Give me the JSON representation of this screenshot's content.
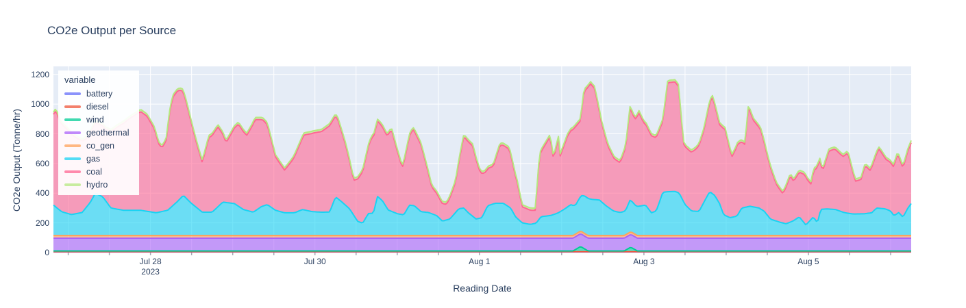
{
  "title": "CO2e Output per Source",
  "x_axis": {
    "title": "Reading Date",
    "time_unit": "days since 2023-07-26 00:00",
    "range_days": [
      0.82,
      11.25
    ],
    "minor_tick_step": 0.5,
    "ticks": [
      {
        "t": 2,
        "label": "Jul 28",
        "sublabel": "2023"
      },
      {
        "t": 4,
        "label": "Jul 30"
      },
      {
        "t": 6,
        "label": "Aug 1"
      },
      {
        "t": 8,
        "label": "Aug 3"
      },
      {
        "t": 10,
        "label": "Aug 5"
      }
    ]
  },
  "y_axis": {
    "title": "CO2e Output (Tonne/hr)",
    "ticks": [
      0,
      200,
      400,
      600,
      800,
      1000,
      1200
    ],
    "range": [
      0,
      1245
    ]
  },
  "legend": {
    "title": "variable"
  },
  "colors": {
    "plot_bg": "#E5ECF6",
    "grid": "#FFFFFF",
    "text": "#2a3f5f",
    "tick_mark": "#a2a9b4",
    "fill_opacity": 0.6
  },
  "chart_data": {
    "type": "area",
    "stacked": true,
    "time_unit": "days since 2023-07-26 00:00",
    "series": [
      {
        "name": "battery",
        "color": "#636EFA",
        "points": [
          [
            0.82,
            4
          ],
          [
            11.25,
            4
          ]
        ]
      },
      {
        "name": "diesel",
        "color": "#EF553B",
        "points": [
          [
            0.82,
            2
          ],
          [
            11.25,
            2
          ]
        ]
      },
      {
        "name": "wind",
        "color": "#00CC96",
        "points": [
          [
            0.82,
            5
          ],
          [
            7.14,
            5
          ],
          [
            7.23,
            35
          ],
          [
            7.32,
            5
          ],
          [
            7.76,
            5
          ],
          [
            7.84,
            30
          ],
          [
            7.92,
            5
          ],
          [
            11.25,
            5
          ]
        ]
      },
      {
        "name": "geothermal",
        "color": "#AB63FA",
        "points": [
          [
            0.82,
            86
          ],
          [
            11.25,
            86
          ]
        ]
      },
      {
        "name": "co_gen",
        "color": "#FFA15A",
        "points": [
          [
            0.82,
            18
          ],
          [
            11.25,
            18
          ]
        ]
      },
      {
        "name": "gas",
        "color": "#19D3F3",
        "points": [
          [
            0.82,
            205
          ],
          [
            0.92,
            160
          ],
          [
            1.04,
            141
          ],
          [
            1.17,
            155
          ],
          [
            1.27,
            225
          ],
          [
            1.33,
            285
          ],
          [
            1.42,
            260
          ],
          [
            1.52,
            185
          ],
          [
            1.67,
            170
          ],
          [
            1.88,
            170
          ],
          [
            2.07,
            153
          ],
          [
            2.21,
            170
          ],
          [
            2.32,
            225
          ],
          [
            2.4,
            270
          ],
          [
            2.5,
            215
          ],
          [
            2.63,
            157
          ],
          [
            2.75,
            157
          ],
          [
            2.88,
            225
          ],
          [
            3.02,
            215
          ],
          [
            3.13,
            175
          ],
          [
            3.25,
            157
          ],
          [
            3.35,
            195
          ],
          [
            3.42,
            208
          ],
          [
            3.52,
            170
          ],
          [
            3.63,
            153
          ],
          [
            3.75,
            153
          ],
          [
            3.85,
            175
          ],
          [
            3.96,
            161
          ],
          [
            4.08,
            157
          ],
          [
            4.18,
            158
          ],
          [
            4.25,
            260
          ],
          [
            4.33,
            225
          ],
          [
            4.42,
            180
          ],
          [
            4.52,
            95
          ],
          [
            4.58,
            83
          ],
          [
            4.65,
            148
          ],
          [
            4.71,
            150
          ],
          [
            4.76,
            263
          ],
          [
            4.82,
            235
          ],
          [
            4.89,
            172
          ],
          [
            5.0,
            147
          ],
          [
            5.08,
            139
          ],
          [
            5.15,
            205
          ],
          [
            5.21,
            200
          ],
          [
            5.29,
            160
          ],
          [
            5.38,
            155
          ],
          [
            5.48,
            134
          ],
          [
            5.55,
            97
          ],
          [
            5.64,
            111
          ],
          [
            5.75,
            180
          ],
          [
            5.81,
            185
          ],
          [
            5.86,
            155
          ],
          [
            5.96,
            111
          ],
          [
            6.03,
            120
          ],
          [
            6.1,
            200
          ],
          [
            6.19,
            217
          ],
          [
            6.29,
            217
          ],
          [
            6.38,
            185
          ],
          [
            6.44,
            125
          ],
          [
            6.52,
            85
          ],
          [
            6.62,
            75
          ],
          [
            6.69,
            83
          ],
          [
            6.75,
            127
          ],
          [
            6.87,
            135
          ],
          [
            6.96,
            153
          ],
          [
            7.04,
            180
          ],
          [
            7.11,
            208
          ],
          [
            7.17,
            195
          ],
          [
            7.25,
            247
          ],
          [
            7.29,
            253
          ],
          [
            7.37,
            243
          ],
          [
            7.46,
            239
          ],
          [
            7.54,
            200
          ],
          [
            7.63,
            165
          ],
          [
            7.71,
            155
          ],
          [
            7.78,
            165
          ],
          [
            7.83,
            215
          ],
          [
            7.9,
            195
          ],
          [
            7.96,
            199
          ],
          [
            8.02,
            205
          ],
          [
            8.09,
            153
          ],
          [
            8.15,
            165
          ],
          [
            8.23,
            291
          ],
          [
            8.29,
            295
          ],
          [
            8.38,
            297
          ],
          [
            8.43,
            285
          ],
          [
            8.5,
            208
          ],
          [
            8.58,
            165
          ],
          [
            8.67,
            162
          ],
          [
            8.75,
            245
          ],
          [
            8.8,
            295
          ],
          [
            8.86,
            270
          ],
          [
            8.92,
            215
          ],
          [
            8.97,
            139
          ],
          [
            9.05,
            120
          ],
          [
            9.13,
            130
          ],
          [
            9.19,
            185
          ],
          [
            9.29,
            197
          ],
          [
            9.4,
            185
          ],
          [
            9.46,
            165
          ],
          [
            9.54,
            110
          ],
          [
            9.65,
            90
          ],
          [
            9.73,
            79
          ],
          [
            9.81,
            97
          ],
          [
            9.89,
            125
          ],
          [
            9.97,
            70
          ],
          [
            10.06,
            125
          ],
          [
            10.11,
            85
          ],
          [
            10.15,
            176
          ],
          [
            10.23,
            179
          ],
          [
            10.33,
            175
          ],
          [
            10.43,
            155
          ],
          [
            10.54,
            145
          ],
          [
            10.67,
            146
          ],
          [
            10.77,
            153
          ],
          [
            10.83,
            185
          ],
          [
            10.93,
            180
          ],
          [
            11.0,
            165
          ],
          [
            11.04,
            133
          ],
          [
            11.1,
            155
          ],
          [
            11.15,
            123
          ],
          [
            11.21,
            185
          ],
          [
            11.25,
            215
          ]
        ]
      },
      {
        "name": "coal",
        "color": "#FF6692",
        "points": [
          [
            0.82,
            611
          ],
          [
            0.85,
            650
          ],
          [
            0.9,
            597
          ],
          [
            1.0,
            560
          ],
          [
            1.1,
            510
          ],
          [
            1.21,
            465
          ],
          [
            1.3,
            475
          ],
          [
            1.45,
            480
          ],
          [
            1.6,
            555
          ],
          [
            1.75,
            620
          ],
          [
            1.88,
            665
          ],
          [
            1.96,
            640
          ],
          [
            2.05,
            560
          ],
          [
            2.1,
            460
          ],
          [
            2.14,
            430
          ],
          [
            2.19,
            470
          ],
          [
            2.23,
            640
          ],
          [
            2.27,
            730
          ],
          [
            2.33,
            745
          ],
          [
            2.38,
            720
          ],
          [
            2.44,
            640
          ],
          [
            2.52,
            500
          ],
          [
            2.57,
            420
          ],
          [
            2.63,
            335
          ],
          [
            2.71,
            503
          ],
          [
            2.82,
            539
          ],
          [
            2.92,
            404
          ],
          [
            3.02,
            509
          ],
          [
            3.07,
            553
          ],
          [
            3.17,
            505
          ],
          [
            3.27,
            616
          ],
          [
            3.37,
            578
          ],
          [
            3.42,
            539
          ],
          [
            3.52,
            360
          ],
          [
            3.63,
            287
          ],
          [
            3.73,
            357
          ],
          [
            3.87,
            505
          ],
          [
            3.98,
            530
          ],
          [
            4.08,
            543
          ],
          [
            4.18,
            582
          ],
          [
            4.28,
            531
          ],
          [
            4.37,
            410
          ],
          [
            4.47,
            234
          ],
          [
            4.58,
            347
          ],
          [
            4.69,
            511
          ],
          [
            4.79,
            504
          ],
          [
            4.87,
            488
          ],
          [
            4.93,
            550
          ],
          [
            5.06,
            316
          ],
          [
            5.15,
            465
          ],
          [
            5.19,
            514
          ],
          [
            5.29,
            450
          ],
          [
            5.42,
            180
          ],
          [
            5.54,
            120
          ],
          [
            5.6,
            105
          ],
          [
            5.71,
            205
          ],
          [
            5.81,
            483
          ],
          [
            5.92,
            473
          ],
          [
            6.0,
            323
          ],
          [
            6.08,
            250
          ],
          [
            6.17,
            254
          ],
          [
            6.25,
            391
          ],
          [
            6.36,
            390
          ],
          [
            6.46,
            240
          ],
          [
            6.52,
            108
          ],
          [
            6.62,
            95
          ],
          [
            6.68,
            88
          ],
          [
            6.73,
            422
          ],
          [
            6.86,
            533
          ],
          [
            6.9,
            376
          ],
          [
            6.96,
            502
          ],
          [
            6.98,
            373
          ],
          [
            7.07,
            477
          ],
          [
            7.17,
            529
          ],
          [
            7.23,
            510
          ],
          [
            7.27,
            699
          ],
          [
            7.35,
            778
          ],
          [
            7.4,
            749
          ],
          [
            7.48,
            541
          ],
          [
            7.56,
            413
          ],
          [
            7.64,
            353
          ],
          [
            7.71,
            335
          ],
          [
            7.78,
            429
          ],
          [
            7.83,
            617
          ],
          [
            7.89,
            576
          ],
          [
            7.94,
            629
          ],
          [
            8.0,
            554
          ],
          [
            8.1,
            515
          ],
          [
            8.14,
            497
          ],
          [
            8.23,
            479
          ],
          [
            8.29,
            735
          ],
          [
            8.38,
            738
          ],
          [
            8.42,
            715
          ],
          [
            8.48,
            390
          ],
          [
            8.57,
            393
          ],
          [
            8.63,
            417
          ],
          [
            8.73,
            485
          ],
          [
            8.83,
            650
          ],
          [
            8.92,
            532
          ],
          [
            8.98,
            590
          ],
          [
            9.07,
            408
          ],
          [
            9.14,
            477
          ],
          [
            9.23,
            422
          ],
          [
            9.27,
            667
          ],
          [
            9.33,
            584
          ],
          [
            9.42,
            532
          ],
          [
            9.5,
            400
          ],
          [
            9.61,
            247
          ],
          [
            9.69,
            197
          ],
          [
            9.78,
            314
          ],
          [
            9.82,
            265
          ],
          [
            9.88,
            297
          ],
          [
            9.96,
            332
          ],
          [
            10.03,
            239
          ],
          [
            10.08,
            341
          ],
          [
            10.13,
            384
          ],
          [
            10.17,
            253
          ],
          [
            10.25,
            391
          ],
          [
            10.32,
            407
          ],
          [
            10.42,
            375
          ],
          [
            10.48,
            406
          ],
          [
            10.57,
            220
          ],
          [
            10.64,
            232
          ],
          [
            10.69,
            324
          ],
          [
            10.75,
            287
          ],
          [
            10.86,
            399
          ],
          [
            10.94,
            336
          ],
          [
            11.03,
            323
          ],
          [
            11.08,
            394
          ],
          [
            11.15,
            331
          ],
          [
            11.21,
            387
          ],
          [
            11.25,
            410
          ]
        ]
      },
      {
        "name": "hydro",
        "color": "#B6E880",
        "points": [
          [
            0.82,
            15
          ],
          [
            11.25,
            15
          ]
        ]
      }
    ]
  }
}
